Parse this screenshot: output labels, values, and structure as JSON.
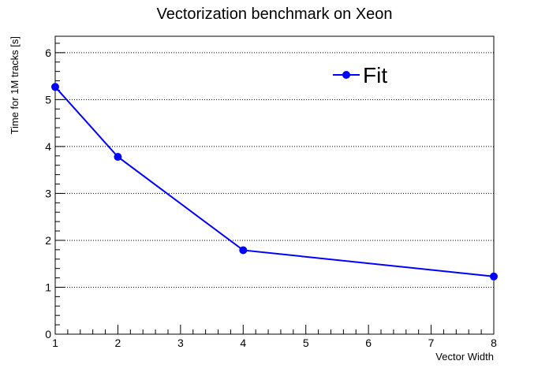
{
  "chart_data": {
    "type": "line",
    "title": "Vectorization benchmark on Xeon",
    "xlabel": "Vector Width",
    "ylabel": "Time for 1M tracks [s]",
    "xlim": [
      1,
      8
    ],
    "ylim": [
      0,
      6.35
    ],
    "xticks": [
      1,
      2,
      3,
      4,
      5,
      6,
      7,
      8
    ],
    "yticks": [
      0,
      1,
      2,
      3,
      4,
      5,
      6
    ],
    "grid": "horizontal dotted",
    "legend_position": "top-right",
    "series": [
      {
        "name": "Fit",
        "color": "#0000ff",
        "x": [
          1,
          2,
          4,
          8
        ],
        "y": [
          5.27,
          3.78,
          1.79,
          1.23
        ]
      }
    ]
  }
}
